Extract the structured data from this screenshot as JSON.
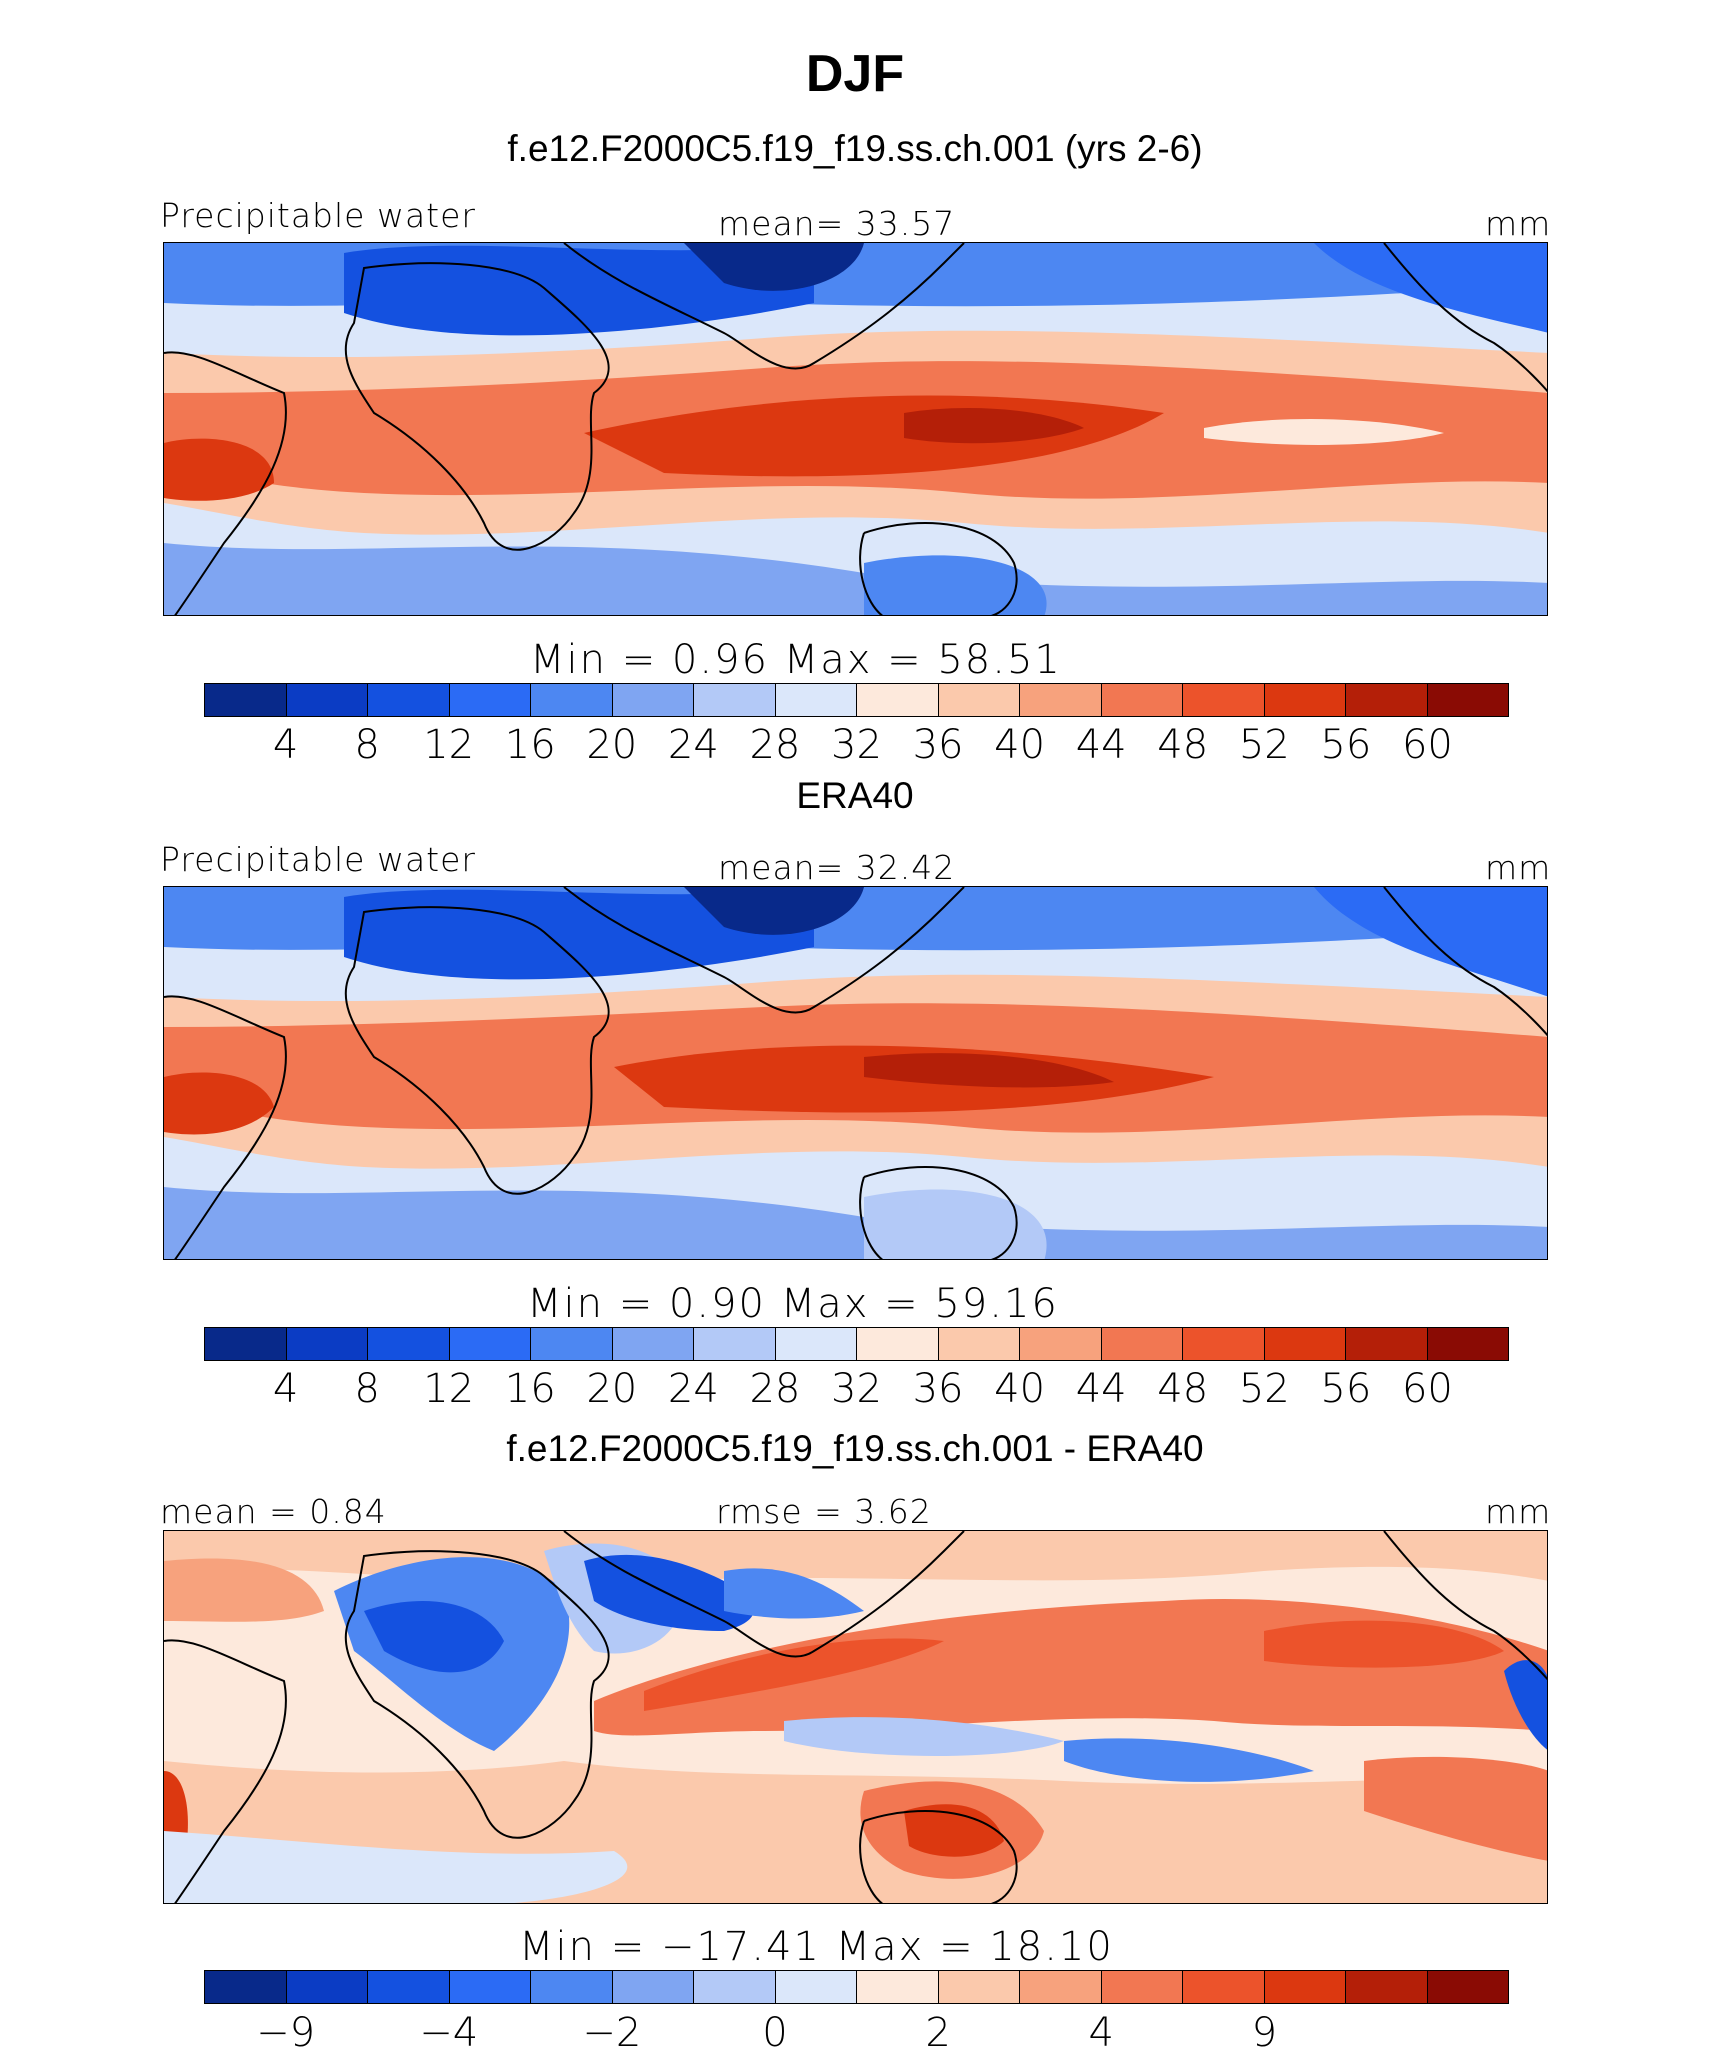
{
  "title": "DJF",
  "colors": [
    "#08298a",
    "#0b3cc4",
    "#1451e0",
    "#2b6bf5",
    "#4d87f2",
    "#7fa5f2",
    "#b3c9f7",
    "#dbe7fa",
    "#fde9dc",
    "#fbc9ac",
    "#f7a27d",
    "#f27752",
    "#ec532b",
    "#dc3810",
    "#b41f08",
    "#8a0b04"
  ],
  "panels": [
    {
      "subtitle": "f.e12.F2000C5.f19_f19.ss.ch.001 (yrs 2-6)",
      "left_label": "Precipitable water",
      "center_label": "mean=   33.57",
      "right_label": "mm",
      "minmax": "Min  =     0.96  Max  =    58.51",
      "ticks": [
        "4",
        "8",
        "12",
        "16",
        "20",
        "24",
        "28",
        "32",
        "36",
        "40",
        "44",
        "48",
        "52",
        "56",
        "60"
      ]
    },
    {
      "subtitle": "ERA40",
      "left_label": "Precipitable water",
      "center_label": "mean=   32.42",
      "right_label": "mm",
      "minmax": "Min  =     0.90  Max  =    59.16",
      "ticks": [
        "4",
        "8",
        "12",
        "16",
        "20",
        "24",
        "28",
        "32",
        "36",
        "40",
        "44",
        "48",
        "52",
        "56",
        "60"
      ]
    },
    {
      "subtitle": "f.e12.F2000C5.f19_f19.ss.ch.001 - ERA40",
      "left_label": "mean  =    0.84",
      "center_label": "rmse  =     3.62",
      "right_label": "mm",
      "minmax": "Min  =  −17.41  Max  =    18.10",
      "ticks": [
        "−9",
        "",
        "−4",
        "",
        "−2",
        "",
        "0",
        "",
        "2",
        "",
        "4",
        "",
        "9",
        "",
        ""
      ]
    }
  ]
}
